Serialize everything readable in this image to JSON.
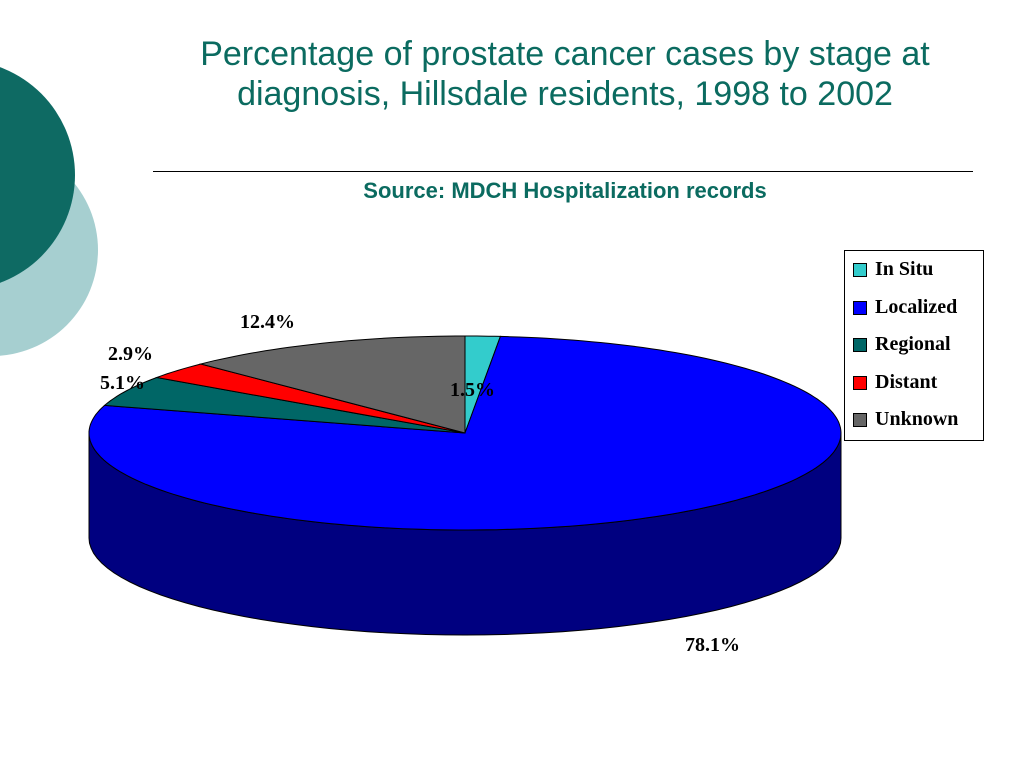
{
  "slide": {
    "title": "Percentage of prostate cancer cases by stage at diagnosis, Hillsdale residents, 1998 to 2002",
    "subtitle": "Source: MDCH Hospitalization records"
  },
  "colors": {
    "title": "#0b6b60",
    "deco_dark": "#0e6a63",
    "deco_light": "#a6cfd0"
  },
  "chart_data": {
    "type": "pie",
    "title": "",
    "legend_position": "right",
    "categories": [
      "In Situ",
      "Localized",
      "Regional",
      "Distant",
      "Unknown"
    ],
    "values": [
      1.5,
      78.1,
      5.1,
      2.9,
      12.4
    ],
    "data_labels": [
      "1.5%",
      "78.1%",
      "5.1%",
      "2.9%",
      "12.4%"
    ],
    "colors": [
      "#33cccc",
      "#0000ff",
      "#006666",
      "#ff0000",
      "#666666"
    ],
    "side_colors": [
      "#1a8a8a",
      "#000080",
      "#003c3c",
      "#a00000",
      "#3c3c3c"
    ],
    "style": "3d"
  }
}
